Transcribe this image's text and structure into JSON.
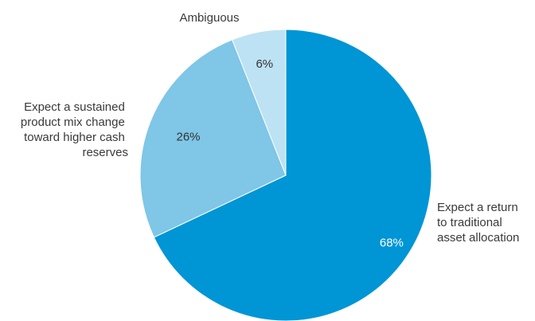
{
  "chart_data": {
    "type": "pie",
    "title": "",
    "categories": [
      "Expect a return to traditional asset allocation",
      "Expect a sustained product mix change toward higher cash reserves",
      "Ambiguous"
    ],
    "values": [
      68,
      26,
      6
    ],
    "value_labels": [
      "68%",
      "26%",
      "6%"
    ],
    "slices": [
      {
        "label_lines": [
          "Expect a return",
          "to traditional",
          "asset allocation"
        ],
        "value": 68,
        "value_label": "68%",
        "color": "#0095d5",
        "value_label_color": "#ffffff"
      },
      {
        "label_lines": [
          "Expect a sustained",
          "product mix change",
          "toward higher cash",
          "reserves"
        ],
        "value": 26,
        "value_label": "26%",
        "color": "#7fc6e7",
        "value_label_color": "#333333"
      },
      {
        "label_lines": [
          "Ambiguous"
        ],
        "value": 6,
        "value_label": "6%",
        "color": "#bde2f3",
        "value_label_color": "#333333"
      }
    ],
    "start_angle_deg": 0,
    "direction": "clockwise",
    "legend": "none"
  }
}
